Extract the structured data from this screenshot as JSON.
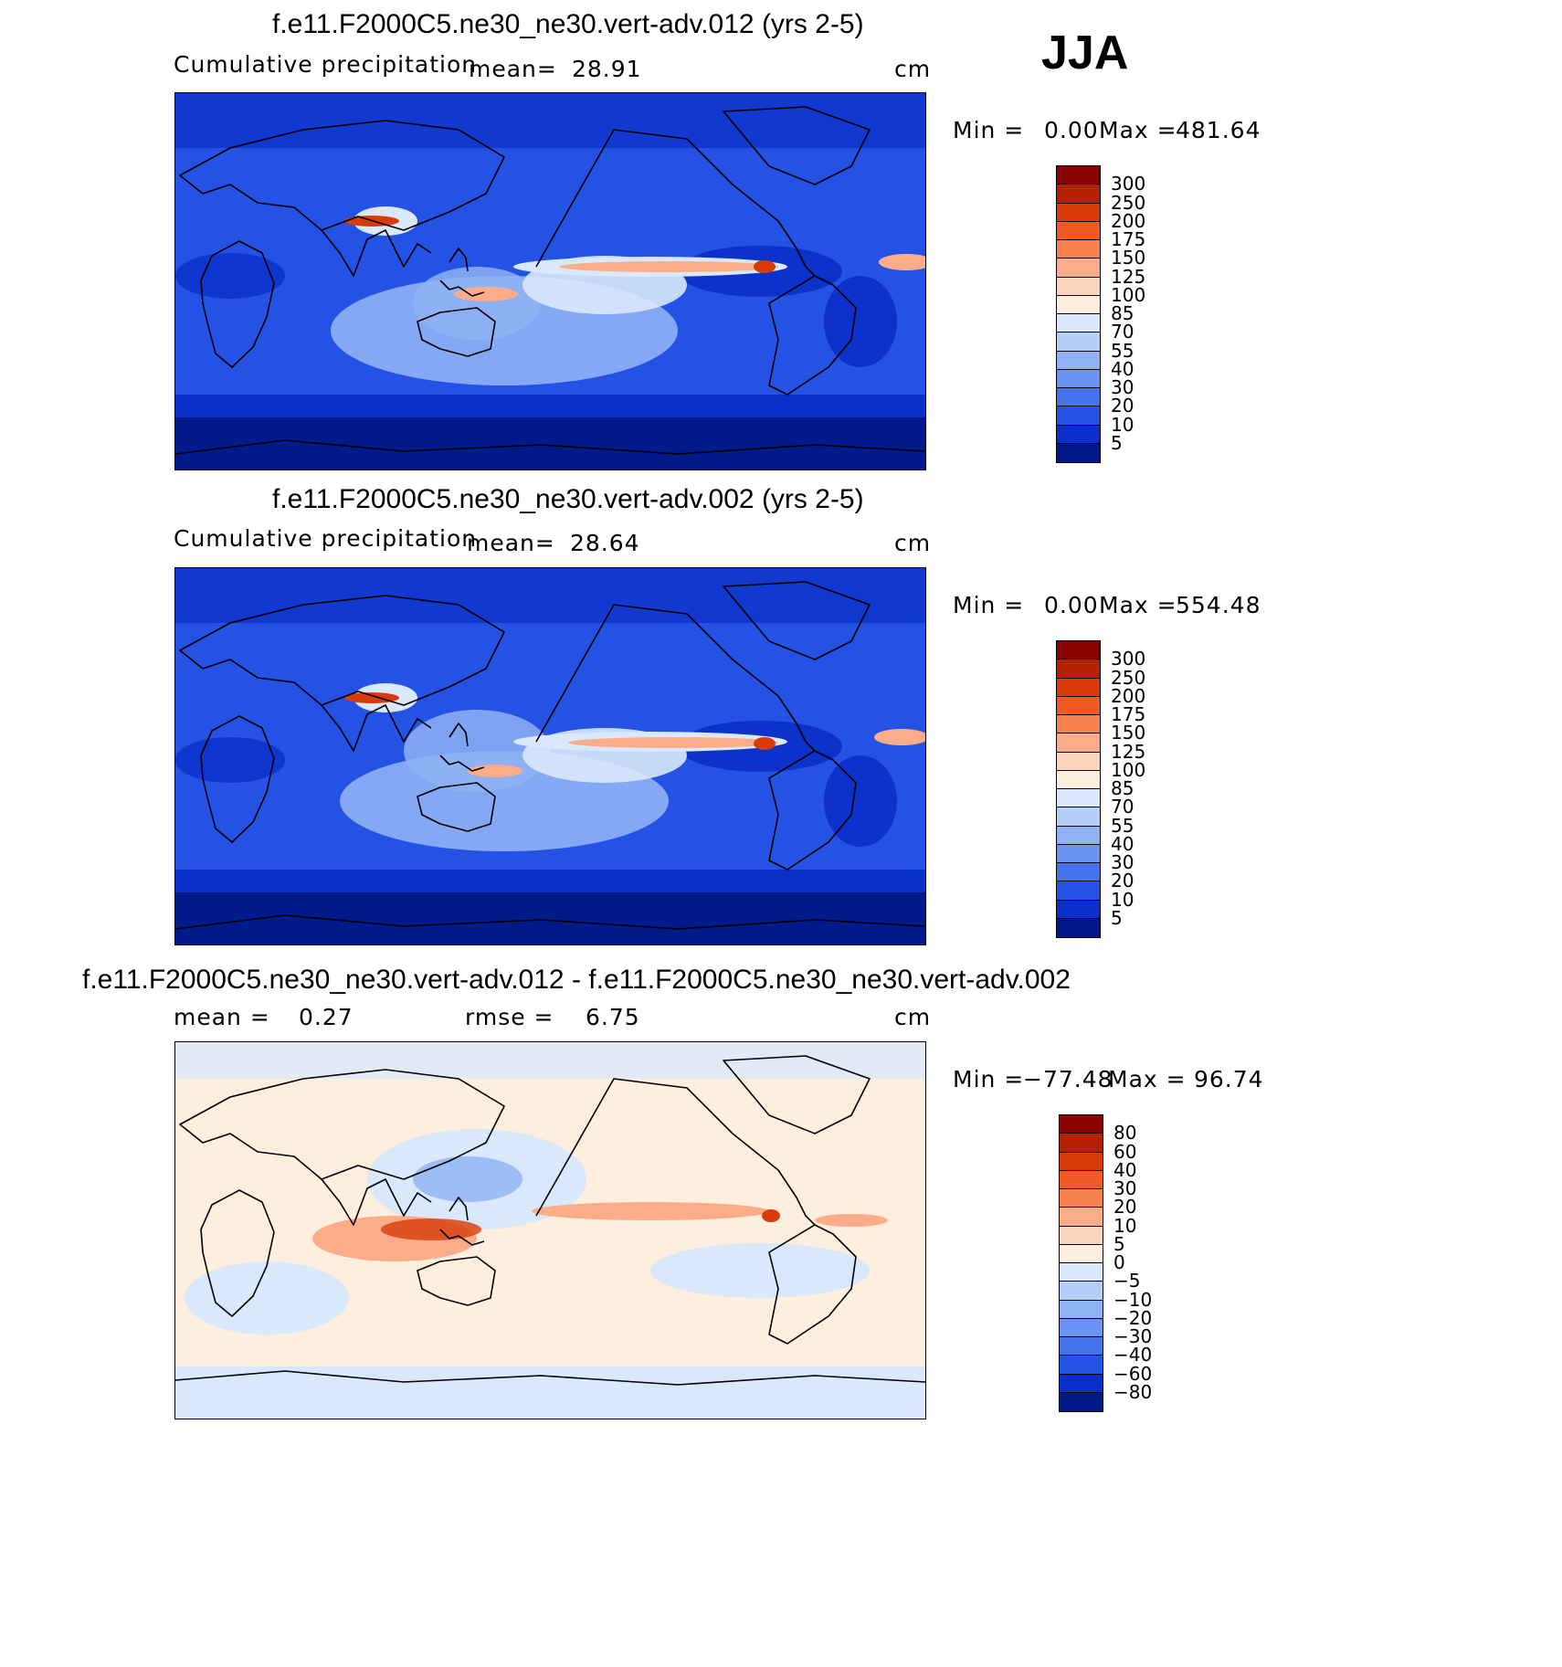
{
  "season": "JJA",
  "panels": [
    {
      "title": "f.e11.F2000C5.ne30_ne30.vert-adv.012 (yrs 2-5)",
      "variable": "Cumulative precipitation",
      "mean_label": "mean=",
      "mean_value": "28.91",
      "units": "cm",
      "min_label": "Min =",
      "min_value": "0.00",
      "max_label": "Max =",
      "max_value": "481.64"
    },
    {
      "title": "f.e11.F2000C5.ne30_ne30.vert-adv.002 (yrs 2-5)",
      "variable": "Cumulative precipitation",
      "mean_label": "mean=",
      "mean_value": "28.64",
      "units": "cm",
      "min_label": "Min =",
      "min_value": "0.00",
      "max_label": "Max =",
      "max_value": "554.48"
    },
    {
      "title": "f.e11.F2000C5.ne30_ne30.vert-adv.012 - f.e11.F2000C5.ne30_ne30.vert-adv.002",
      "mean_label": "mean =",
      "mean_value": "0.27",
      "rmse_label": "rmse =",
      "rmse_value": "6.75",
      "units": "cm",
      "min_label": "Min =",
      "min_value": "−77.48",
      "max_label": "Max =",
      "max_value": "96.74"
    }
  ],
  "colorbars": {
    "precip": {
      "labels": [
        "300",
        "250",
        "200",
        "175",
        "150",
        "125",
        "100",
        "85",
        "70",
        "55",
        "40",
        "30",
        "20",
        "10",
        "5"
      ],
      "colors": [
        "#8b0000",
        "#b22200",
        "#d83b08",
        "#ef5a24",
        "#f7814e",
        "#fbad8a",
        "#fcd4bd",
        "#fdeede",
        "#d9e8fb",
        "#b3cef7",
        "#8fb1f5",
        "#6a93f2",
        "#4473ee",
        "#2352e4",
        "#0a2fc8",
        "#001a8a"
      ]
    },
    "diff": {
      "labels": [
        "80",
        "60",
        "40",
        "30",
        "20",
        "10",
        "5",
        "0",
        "−5",
        "−10",
        "−20",
        "−30",
        "−40",
        "−60",
        "−80"
      ],
      "colors": [
        "#8b0000",
        "#b22200",
        "#d83b08",
        "#ef5a24",
        "#f7814e",
        "#fbad8a",
        "#fcd4bd",
        "#fdeede",
        "#d9e8fb",
        "#b3cef7",
        "#8fb1f5",
        "#6a93f2",
        "#4473ee",
        "#2352e4",
        "#0a2fc8",
        "#001a8a"
      ]
    }
  },
  "map_colors": {
    "ocean_mid": "#2352e4",
    "ocean_dry": "#0a2fc8",
    "deep": "#001a8a",
    "light": "#8fb1f5",
    "pale": "#d9e8fb",
    "itcz": "#fbad8a",
    "core": "#d83b08",
    "diff_bg": "#fdeede",
    "diff_neg": "#d9e8fb",
    "diff_pos": "#fcd4bd"
  }
}
